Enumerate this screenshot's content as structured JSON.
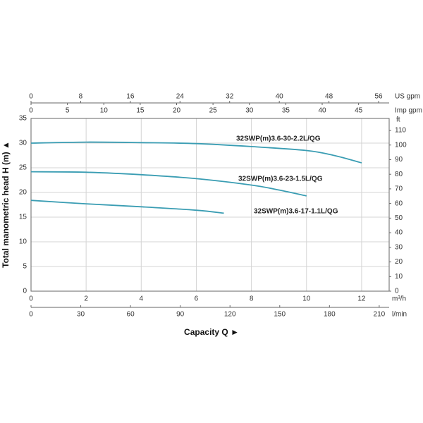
{
  "chart_data": {
    "type": "line",
    "x_label": "Capacity Q  ►",
    "y_label": "Total manometric head H (m)  ▲",
    "xlim": [
      0,
      13
    ],
    "xticks": [
      0,
      2,
      4,
      6,
      8,
      10,
      12
    ],
    "x_unit": "m³/h",
    "ylim": [
      0,
      35
    ],
    "yticks": [
      0,
      5,
      10,
      15,
      20,
      25,
      30,
      35
    ],
    "grid": true,
    "bottom_axis": {
      "unit": "l/min",
      "lim": [
        0,
        216
      ],
      "ticks": [
        0,
        30,
        60,
        90,
        120,
        150,
        180,
        210
      ]
    },
    "top_axis": {
      "unit": "US gpm",
      "lim": [
        0,
        57.7
      ],
      "ticks": [
        0,
        8,
        16,
        24,
        32,
        40,
        48,
        56
      ]
    },
    "top_axis_2": {
      "unit": "Imp gpm",
      "lim": [
        0,
        49.2
      ],
      "ticks": [
        0,
        5,
        10,
        15,
        20,
        25,
        30,
        35,
        40,
        45
      ]
    },
    "right_axis": {
      "unit": "ft",
      "lim": [
        0,
        118.2
      ],
      "ticks": [
        0,
        10,
        20,
        30,
        40,
        50,
        60,
        70,
        80,
        90,
        100,
        110
      ]
    },
    "series": [
      {
        "name": "32SWP(m)3.6-30-2.2L/QG",
        "color": "#3a9db3",
        "x": [
          0,
          2,
          4,
          6,
          8,
          10,
          11,
          12
        ],
        "values": [
          30,
          30.2,
          30.1,
          29.9,
          29.3,
          28.5,
          27.5,
          26
        ]
      },
      {
        "name": "32SWP(m)3.6-23-1.5L/QG",
        "color": "#3a9db3",
        "x": [
          0,
          2,
          4,
          6,
          8,
          9,
          10
        ],
        "values": [
          24.2,
          24.1,
          23.6,
          22.8,
          21.5,
          20.5,
          19.3
        ]
      },
      {
        "name": "32SWP(m)3.6-17-1.1L/QG",
        "color": "#3a9db3",
        "x": [
          0,
          2,
          4,
          6,
          7
        ],
        "values": [
          18.4,
          17.7,
          17.1,
          16.4,
          15.8
        ]
      }
    ]
  }
}
